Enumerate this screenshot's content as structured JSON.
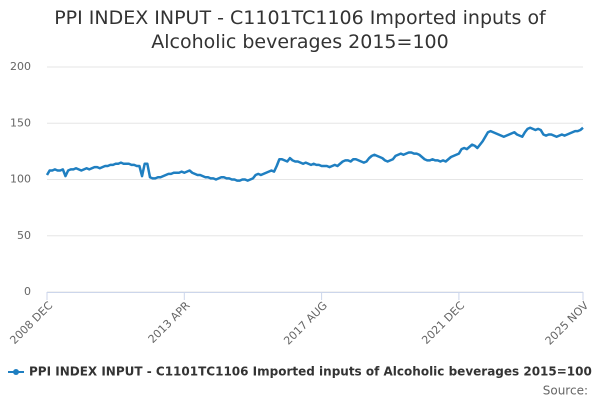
{
  "chart_data": {
    "type": "line",
    "title": "PPI INDEX INPUT - C1101TC1106 Imported inputs of Alcoholic beverages 2015=100",
    "source": "Source:",
    "categories": [
      "2008 DEC",
      null,
      null,
      null,
      null,
      null,
      null,
      null,
      null,
      null,
      null,
      null,
      null,
      null,
      null,
      null,
      null,
      null,
      null,
      null,
      null,
      null,
      null,
      null,
      null,
      null,
      null,
      null,
      null,
      null,
      null,
      null,
      null,
      null,
      null,
      null,
      null,
      null,
      null,
      null,
      null,
      null,
      null,
      null,
      null,
      null,
      null,
      null,
      null,
      null,
      null,
      null,
      "2013 APR",
      null,
      null,
      null,
      null,
      null,
      null,
      null,
      null,
      null,
      null,
      null,
      null,
      null,
      null,
      null,
      null,
      null,
      null,
      null,
      null,
      null,
      null,
      null,
      null,
      null,
      null,
      null,
      null,
      null,
      null,
      null,
      null,
      null,
      null,
      null,
      null,
      null,
      null,
      null,
      null,
      null,
      null,
      null,
      null,
      null,
      null,
      null,
      null,
      null,
      null,
      null,
      "2017 AUG",
      null,
      null,
      null,
      null,
      null,
      null,
      null,
      null,
      null,
      null,
      null,
      null,
      null,
      null,
      null,
      null,
      null,
      null,
      null,
      null,
      null,
      null,
      null,
      null,
      null,
      null,
      null,
      null,
      null,
      null,
      null,
      null,
      null,
      null,
      null,
      null,
      null,
      null,
      null,
      null,
      null,
      null,
      null,
      null,
      null,
      null,
      null,
      null,
      null,
      null,
      null,
      "2021 DEC",
      null,
      null,
      null,
      null,
      null,
      null,
      null,
      null,
      null,
      null,
      null,
      null,
      null,
      null,
      null,
      null,
      null,
      null,
      null,
      null,
      null,
      null,
      null,
      null,
      null,
      null,
      null,
      null,
      null,
      null,
      null,
      null,
      null,
      null,
      null,
      null,
      null,
      null,
      null,
      null,
      null,
      null,
      null,
      null,
      null,
      null,
      "2025 NOV"
    ],
    "series": [
      {
        "name": "PPI INDEX INPUT - C1101TC1106 Imported inputs of Alcoholic beverages 2015=100",
        "color": "#1f7fc1",
        "values": [
          104,
          108,
          108,
          109,
          108,
          108,
          109,
          103,
          108,
          109,
          109,
          110,
          109,
          108,
          109,
          110,
          109,
          110,
          111,
          111,
          110,
          111,
          112,
          112,
          113,
          113,
          114,
          114,
          115,
          114,
          114,
          114,
          113,
          113,
          112,
          112,
          103,
          114,
          114,
          102,
          101,
          101,
          102,
          102,
          103,
          104,
          105,
          105,
          106,
          106,
          106,
          107,
          106,
          107,
          108,
          106,
          105,
          104,
          104,
          103,
          102,
          102,
          101,
          101,
          100,
          101,
          102,
          102,
          101,
          101,
          100,
          100,
          99,
          99,
          100,
          100,
          99,
          100,
          101,
          104,
          105,
          104,
          105,
          106,
          107,
          108,
          107,
          112,
          118,
          118,
          117,
          116,
          119,
          117,
          116,
          116,
          115,
          114,
          115,
          114,
          113,
          114,
          113,
          113,
          112,
          112,
          112,
          111,
          112,
          113,
          112,
          114,
          116,
          117,
          117,
          116,
          118,
          118,
          117,
          116,
          115,
          116,
          119,
          121,
          122,
          121,
          120,
          119,
          117,
          116,
          117,
          118,
          121,
          122,
          123,
          122,
          123,
          124,
          124,
          123,
          123,
          122,
          120,
          118,
          117,
          117,
          118,
          117,
          117,
          116,
          117,
          116,
          118,
          120,
          121,
          122,
          123,
          127,
          128,
          127,
          129,
          131,
          130,
          128,
          131,
          134,
          138,
          142,
          143,
          142,
          141,
          140,
          139,
          138,
          139,
          140,
          141,
          142,
          140,
          139,
          138,
          142,
          145,
          146,
          145,
          144,
          145,
          144,
          140,
          139,
          140,
          140,
          139,
          138,
          139,
          140,
          139,
          140,
          141,
          142,
          143,
          143,
          144,
          146
        ]
      }
    ],
    "ylim": [
      0,
      200
    ],
    "yticks": [
      0,
      50,
      100,
      150,
      200
    ],
    "grid": true,
    "legend": "bottom"
  }
}
